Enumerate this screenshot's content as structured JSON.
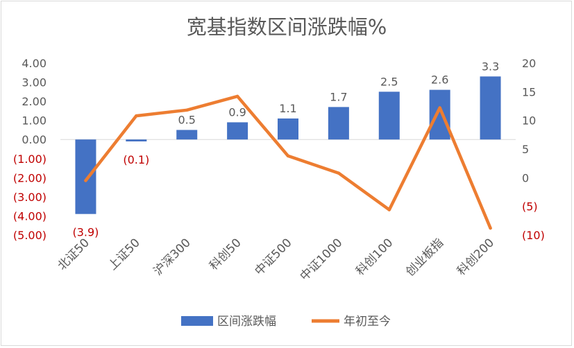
{
  "chart_data": {
    "type": "bar+line",
    "title": "宽基指数区间涨跌幅%",
    "categories": [
      "北证50",
      "上证50",
      "沪深300",
      "科创50",
      "中证500",
      "中证1000",
      "科创100",
      "创业板指",
      "科创200"
    ],
    "series": [
      {
        "name": "区间涨跌幅",
        "type": "bar",
        "axis": "left",
        "color": "#4472C4",
        "values": [
          -3.9,
          -0.1,
          0.5,
          0.9,
          1.1,
          1.7,
          2.5,
          2.6,
          3.3
        ],
        "data_labels": [
          "(3.9)",
          "(0.1)",
          "0.5",
          "0.9",
          "1.1",
          "1.7",
          "2.5",
          "2.6",
          "3.3"
        ]
      },
      {
        "name": "年初至今",
        "type": "line",
        "axis": "right",
        "color": "#ED7D31",
        "values": [
          -0.5,
          10.8,
          11.8,
          14.2,
          3.8,
          0.8,
          -5.6,
          12.2,
          -8.8
        ]
      }
    ],
    "y_left": {
      "ylim": [
        -5,
        4
      ],
      "ticks": [
        4,
        3,
        2,
        1,
        0,
        -1,
        -2,
        -3,
        -4,
        -5
      ],
      "tick_labels": [
        "4.00",
        "3.00",
        "2.00",
        "1.00",
        "0.00",
        "(1.00)",
        "(2.00)",
        "(3.00)",
        "(4.00)",
        "(5.00)"
      ]
    },
    "y_right": {
      "ylim": [
        -10,
        20
      ],
      "ticks": [
        20,
        15,
        10,
        5,
        0,
        -5,
        -10
      ],
      "tick_labels": [
        "20",
        "15",
        "10",
        "5",
        "0",
        "(5)",
        "(10)"
      ]
    },
    "negative_color": "#C00000",
    "text_color": "#595959",
    "grid": false,
    "legend": "bottom"
  }
}
